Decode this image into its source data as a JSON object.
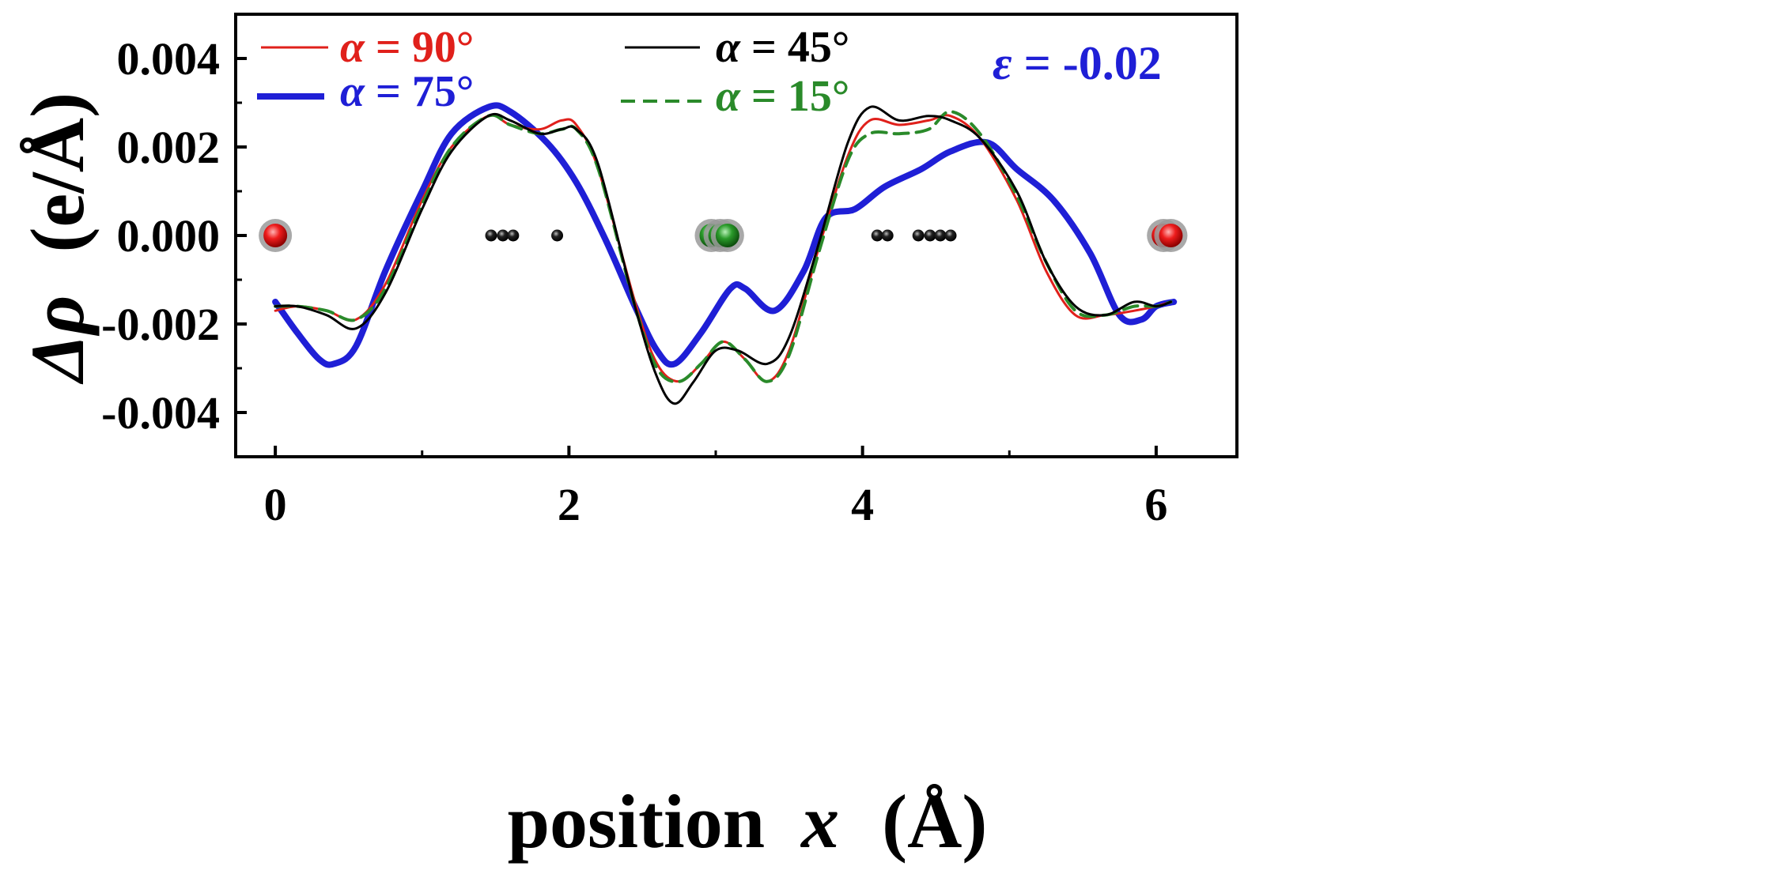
{
  "chart_data": {
    "type": "line",
    "title": "",
    "xlabel_main": "position",
    "xlabel_var": "x",
    "xlabel_unit": "(Å)",
    "ylabel_main": "Δρ",
    "ylabel_unit": "(e/Å)",
    "xlim": [
      -0.27,
      6.55
    ],
    "ylim": [
      -0.005,
      0.005
    ],
    "xticks": [
      0,
      2,
      4,
      6
    ],
    "xtick_labels": [
      "0",
      "2",
      "4",
      "6"
    ],
    "xminor": [
      1,
      3,
      5
    ],
    "yticks": [
      0.004,
      0.002,
      0.0,
      -0.002,
      -0.004
    ],
    "ytick_labels": [
      "0.004",
      "0.002",
      "0.000",
      "-0.002",
      "-0.004"
    ],
    "annotation": {
      "symbol": "ε",
      "text": " = -0.02",
      "color": "#1f1fd6"
    },
    "series": [
      {
        "name": "α = 90°",
        "legend_symbol": "α",
        "legend_value": " = 90°",
        "color": "#e0201b",
        "width": 3,
        "dash": "",
        "x": [
          0,
          0.15,
          0.35,
          0.55,
          0.75,
          1.0,
          1.2,
          1.45,
          1.6,
          1.8,
          1.95,
          2.05,
          2.2,
          2.45,
          2.6,
          2.75,
          2.9,
          3.05,
          3.2,
          3.35,
          3.5,
          3.7,
          3.9,
          4.05,
          4.25,
          4.45,
          4.6,
          4.8,
          5.05,
          5.25,
          5.45,
          5.65,
          5.85,
          6.0,
          6.1
        ],
        "y": [
          -0.0017,
          -0.0016,
          -0.0017,
          -0.0019,
          -0.0011,
          0.0008,
          0.002,
          0.0027,
          0.0025,
          0.0024,
          0.0026,
          0.0025,
          0.0015,
          -0.0015,
          -0.0029,
          -0.0033,
          -0.0029,
          -0.0024,
          -0.0028,
          -0.0033,
          -0.0026,
          -0.0003,
          0.0018,
          0.0026,
          0.0025,
          0.0026,
          0.0027,
          0.0022,
          0.0008,
          -0.0008,
          -0.0018,
          -0.0018,
          -0.0017,
          -0.0016,
          -0.0015
        ]
      },
      {
        "name": "α = 45°",
        "legend_symbol": "α",
        "legend_value": " =  45°",
        "color": "#000000",
        "width": 3,
        "dash": "",
        "x": [
          0,
          0.15,
          0.35,
          0.55,
          0.75,
          1.0,
          1.2,
          1.45,
          1.6,
          1.8,
          1.95,
          2.05,
          2.2,
          2.45,
          2.6,
          2.72,
          2.85,
          3.0,
          3.15,
          3.35,
          3.5,
          3.7,
          3.9,
          4.05,
          4.25,
          4.45,
          4.6,
          4.8,
          5.05,
          5.25,
          5.45,
          5.65,
          5.85,
          6.0,
          6.1
        ],
        "y": [
          -0.0016,
          -0.0016,
          -0.0018,
          -0.0021,
          -0.0013,
          0.0006,
          0.0019,
          0.0027,
          0.0026,
          0.0023,
          0.0024,
          0.0024,
          0.0016,
          -0.0016,
          -0.0032,
          -0.0038,
          -0.0033,
          -0.0026,
          -0.0026,
          -0.0029,
          -0.0023,
          -0.0002,
          0.0021,
          0.0029,
          0.0026,
          0.0027,
          0.0026,
          0.0022,
          0.001,
          -0.0006,
          -0.0016,
          -0.0018,
          -0.0015,
          -0.0016,
          -0.0015
        ]
      },
      {
        "name": "α = 75°",
        "legend_symbol": "α",
        "legend_value": " = 75°",
        "color": "#1f1fd6",
        "width": 8,
        "dash": "",
        "x": [
          0,
          0.15,
          0.3,
          0.4,
          0.55,
          0.75,
          1.0,
          1.2,
          1.45,
          1.6,
          1.85,
          2.05,
          2.25,
          2.45,
          2.6,
          2.72,
          2.9,
          3.1,
          3.2,
          3.4,
          3.6,
          3.75,
          3.95,
          4.15,
          4.4,
          4.6,
          4.85,
          5.05,
          5.3,
          5.55,
          5.75,
          5.9,
          6.0,
          6.12
        ],
        "y": [
          -0.0015,
          -0.0022,
          -0.0028,
          -0.0029,
          -0.0025,
          -0.0008,
          0.001,
          0.0023,
          0.0029,
          0.0028,
          0.0021,
          0.0012,
          -0.0001,
          -0.0016,
          -0.0026,
          -0.0029,
          -0.0022,
          -0.0012,
          -0.0012,
          -0.0017,
          -0.0008,
          0.0004,
          0.0006,
          0.0011,
          0.0015,
          0.0019,
          0.0021,
          0.0015,
          0.0008,
          -0.0004,
          -0.0018,
          -0.0019,
          -0.0016,
          -0.0015
        ]
      },
      {
        "name": "α = 15°",
        "legend_symbol": "α",
        "legend_value": " =  15°",
        "color": "#2a8a2a",
        "width": 4,
        "dash": "18,10",
        "x": [
          0,
          0.15,
          0.35,
          0.55,
          0.75,
          1.0,
          1.2,
          1.45,
          1.6,
          1.8,
          1.95,
          2.05,
          2.2,
          2.45,
          2.6,
          2.75,
          2.9,
          3.05,
          3.2,
          3.35,
          3.5,
          3.7,
          3.9,
          4.05,
          4.25,
          4.45,
          4.6,
          4.8,
          5.05,
          5.25,
          5.45,
          5.65,
          5.85,
          6.0,
          6.1
        ],
        "y": [
          -0.0016,
          -0.0016,
          -0.0017,
          -0.0019,
          -0.0012,
          0.0007,
          0.002,
          0.0027,
          0.0025,
          0.0023,
          0.0024,
          0.0024,
          0.0015,
          -0.0016,
          -0.003,
          -0.0033,
          -0.0029,
          -0.0024,
          -0.0028,
          -0.0033,
          -0.0027,
          -0.0004,
          0.0017,
          0.0023,
          0.0023,
          0.0024,
          0.0028,
          0.0023,
          0.0009,
          -0.0006,
          -0.0017,
          -0.0018,
          -0.0016,
          -0.0016,
          -0.0015
        ]
      }
    ],
    "atoms": [
      {
        "element": "oxygen",
        "color": "#e81515",
        "x": [
          0.0,
          6.05,
          6.1
        ]
      },
      {
        "element": "carbon",
        "color": "#111111",
        "x": [
          1.47,
          1.55,
          1.62,
          1.92,
          4.1,
          4.17,
          4.38,
          4.46,
          4.53,
          4.6
        ]
      },
      {
        "element": "metal",
        "color": "#2a8a2a",
        "x": [
          2.97,
          3.03,
          3.08
        ]
      }
    ]
  }
}
